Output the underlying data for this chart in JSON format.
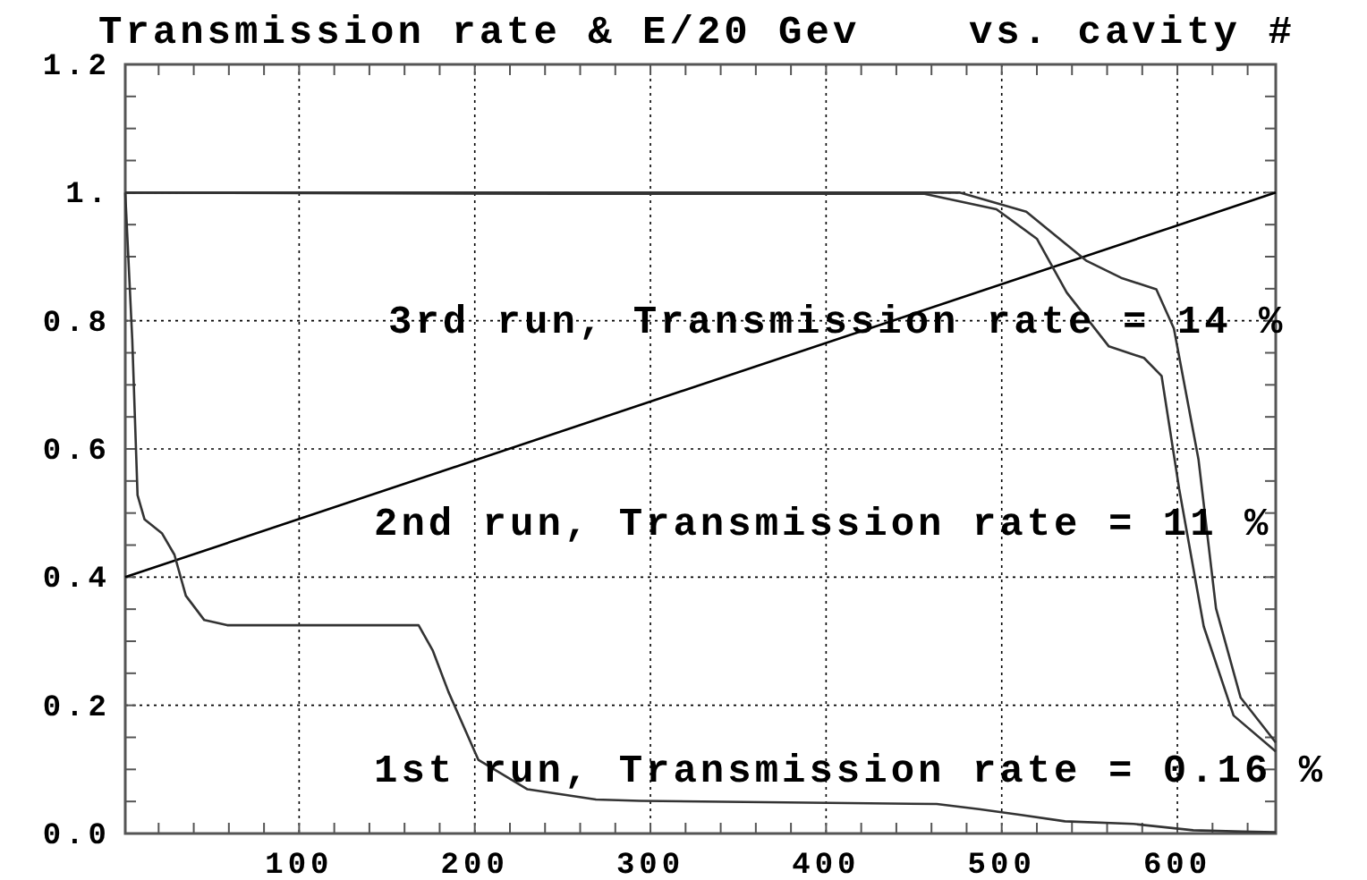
{
  "chart_data": {
    "type": "line",
    "title": "Transmission rate & E/20 Gev    vs. cavity #",
    "xlim": [
      1,
      656
    ],
    "ylim": [
      0,
      1.2
    ],
    "xticks": [
      {
        "value": 20,
        "label": null
      },
      {
        "value": 40,
        "label": null
      },
      {
        "value": 60,
        "label": null
      },
      {
        "value": 80,
        "label": null
      },
      100,
      {
        "value": 120,
        "label": null
      },
      {
        "value": 140,
        "label": null
      },
      {
        "value": 160,
        "label": null
      },
      {
        "value": 180,
        "label": null
      },
      200,
      {
        "value": 220,
        "label": null
      },
      {
        "value": 240,
        "label": null
      },
      {
        "value": 260,
        "label": null
      },
      {
        "value": 280,
        "label": null
      },
      300,
      {
        "value": 320,
        "label": null
      },
      {
        "value": 340,
        "label": null
      },
      {
        "value": 360,
        "label": null
      },
      {
        "value": 380,
        "label": null
      },
      400,
      {
        "value": 420,
        "label": null
      },
      {
        "value": 440,
        "label": null
      },
      {
        "value": 460,
        "label": null
      },
      {
        "value": 480,
        "label": null
      },
      500,
      {
        "value": 520,
        "label": null
      },
      {
        "value": 540,
        "label": null
      },
      {
        "value": 560,
        "label": null
      },
      {
        "value": 580,
        "label": null
      },
      600,
      {
        "value": 620,
        "label": null
      },
      {
        "value": 640,
        "label": null
      }
    ],
    "yticks": [
      {
        "value": 0,
        "label": "0.0"
      },
      {
        "value": 0.05,
        "label": null
      },
      {
        "value": 0.1,
        "label": null
      },
      {
        "value": 0.15,
        "label": null
      },
      {
        "value": 0.2,
        "label": "0.2"
      },
      {
        "value": 0.25,
        "label": null
      },
      {
        "value": 0.3,
        "label": null
      },
      {
        "value": 0.35,
        "label": null
      },
      {
        "value": 0.4,
        "label": "0.4"
      },
      {
        "value": 0.45,
        "label": null
      },
      {
        "value": 0.5,
        "label": null
      },
      {
        "value": 0.55,
        "label": null
      },
      {
        "value": 0.6,
        "label": "0.6"
      },
      {
        "value": 0.65,
        "label": null
      },
      {
        "value": 0.7,
        "label": null
      },
      {
        "value": 0.75,
        "label": null
      },
      {
        "value": 0.8,
        "label": "0.8"
      },
      {
        "value": 0.85,
        "label": null
      },
      {
        "value": 0.9,
        "label": null
      },
      {
        "value": 0.95,
        "label": null
      },
      {
        "value": 1,
        "label": "1."
      },
      {
        "value": 1.05,
        "label": null
      },
      {
        "value": 1.1,
        "label": null
      },
      {
        "value": 1.15,
        "label": null
      },
      {
        "value": 1.2,
        "label": "1.2"
      }
    ],
    "grid": true,
    "line_style": "solid",
    "marker": "none",
    "series": [
      {
        "color": "#000000",
        "x": [
          1,
          656
        ],
        "values": [
          0.4,
          1.0
        ]
      },
      {
        "color": "#333333",
        "x": [
          1,
          470,
          476,
          514,
          548,
          568,
          588,
          598,
          612,
          622,
          636,
          656
        ],
        "values": [
          1.0,
          1.0,
          1.0,
          0.97,
          0.894,
          0.867,
          0.849,
          0.788,
          0.584,
          0.351,
          0.212,
          0.142
        ]
      },
      {
        "color": "#333333",
        "x": [
          1,
          250,
          456,
          497,
          520,
          537,
          561,
          581,
          591,
          601,
          615,
          632,
          656
        ],
        "values": [
          1.0,
          0.998,
          0.998,
          0.974,
          0.928,
          0.844,
          0.76,
          0.742,
          0.714,
          0.538,
          0.323,
          0.184,
          0.128
        ]
      },
      {
        "color": "#333333",
        "x": [
          1,
          5,
          8,
          12,
          22,
          29,
          35.5,
          46,
          59,
          168,
          176,
          185,
          202,
          230,
          269,
          294,
          463,
          487,
          511,
          536,
          575,
          609,
          637,
          656
        ],
        "values": [
          1.0,
          0.77,
          0.528,
          0.49,
          0.468,
          0.435,
          0.371,
          0.333,
          0.325,
          0.325,
          0.286,
          0.221,
          0.115,
          0.069,
          0.053,
          0.051,
          0.046,
          0.038,
          0.029,
          0.019,
          0.015,
          0.005,
          0.003,
          0.002
        ]
      }
    ],
    "annotations": [
      "3rd run, Transmission rate = 14 %",
      "2nd run, Transmission rate = 11 %",
      "1st run, Transmission rate = 0.16 %"
    ]
  }
}
